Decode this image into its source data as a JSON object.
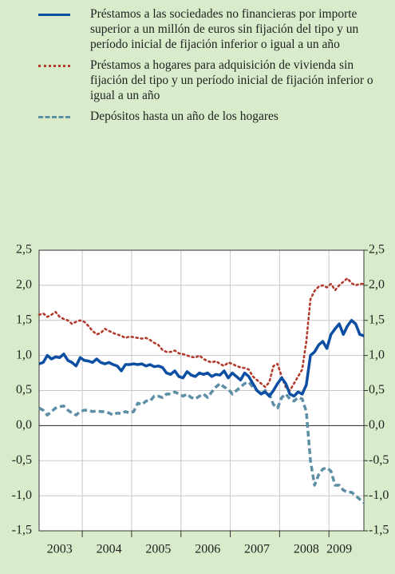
{
  "chart_data": {
    "type": "line",
    "categories": [
      null,
      null,
      null,
      null,
      null,
      "2003",
      null,
      null,
      null,
      null,
      null,
      null,
      null,
      null,
      null,
      null,
      null,
      "2004",
      null,
      null,
      null,
      null,
      null,
      null,
      null,
      null,
      null,
      null,
      null,
      "2005",
      null,
      null,
      null,
      null,
      null,
      null,
      null,
      null,
      null,
      null,
      null,
      "2006",
      null,
      null,
      null,
      null,
      null,
      null,
      null,
      null,
      null,
      null,
      null,
      "2007",
      null,
      null,
      null,
      null,
      null,
      null,
      null,
      null,
      null,
      null,
      null,
      "2008",
      null,
      null,
      null,
      null,
      null,
      null,
      null,
      "2009",
      null,
      null,
      null,
      null,
      null,
      null
    ],
    "series": [
      {
        "name": "Préstamos a las sociedades no financieras por importe superior a un millón de euros sin fijación del tipo y un período inicial de fijación inferior o igual a un año",
        "color": "#0b4ea2",
        "style": "solid",
        "values": [
          0.88,
          0.9,
          1.0,
          0.95,
          0.98,
          0.97,
          1.02,
          0.93,
          0.9,
          0.85,
          0.97,
          0.93,
          0.92,
          0.9,
          0.95,
          0.9,
          0.88,
          0.9,
          0.87,
          0.85,
          0.78,
          0.87,
          0.87,
          0.88,
          0.87,
          0.88,
          0.85,
          0.87,
          0.84,
          0.85,
          0.83,
          0.75,
          0.73,
          0.78,
          0.7,
          0.68,
          0.77,
          0.72,
          0.7,
          0.75,
          0.73,
          0.75,
          0.7,
          0.73,
          0.72,
          0.78,
          0.68,
          0.75,
          0.7,
          0.65,
          0.75,
          0.7,
          0.6,
          0.5,
          0.45,
          0.48,
          0.42,
          0.5,
          0.6,
          0.68,
          0.6,
          0.45,
          0.42,
          0.48,
          0.45,
          0.58,
          1.0,
          1.05,
          1.15,
          1.2,
          1.1,
          1.3,
          1.38,
          1.45,
          1.3,
          1.42,
          1.5,
          1.45,
          1.3,
          1.28
        ]
      },
      {
        "name": "Préstamos a hogares para adquisición de vivienda sin fijación del tipo y un período inicial de fijación inferior o igual a un año",
        "color": "#b23a2c",
        "style": "dotted",
        "values": [
          1.58,
          1.6,
          1.55,
          1.58,
          1.62,
          1.55,
          1.52,
          1.5,
          1.45,
          1.48,
          1.5,
          1.48,
          1.42,
          1.35,
          1.3,
          1.32,
          1.38,
          1.35,
          1.32,
          1.3,
          1.28,
          1.25,
          1.27,
          1.26,
          1.25,
          1.24,
          1.25,
          1.22,
          1.18,
          1.15,
          1.08,
          1.05,
          1.05,
          1.07,
          1.03,
          1.02,
          1.0,
          0.98,
          0.97,
          1.0,
          0.95,
          0.92,
          0.9,
          0.92,
          0.88,
          0.85,
          0.9,
          0.88,
          0.85,
          0.83,
          0.82,
          0.8,
          0.7,
          0.65,
          0.6,
          0.55,
          0.62,
          0.85,
          0.88,
          0.7,
          0.55,
          0.5,
          0.6,
          0.7,
          0.8,
          1.2,
          1.8,
          1.92,
          1.98,
          2.0,
          1.97,
          2.02,
          1.93,
          2.0,
          2.05,
          2.1,
          2.03,
          2.0,
          2.02,
          2.02
        ]
      },
      {
        "name": "Depósitos hasta un año de los hogares",
        "color": "#5c8fa6",
        "style": "dashed",
        "values": [
          0.25,
          0.22,
          0.15,
          0.2,
          0.25,
          0.27,
          0.28,
          0.22,
          0.18,
          0.15,
          0.2,
          0.22,
          0.22,
          0.2,
          0.21,
          0.2,
          0.2,
          0.18,
          0.15,
          0.18,
          0.17,
          0.2,
          0.18,
          0.2,
          0.32,
          0.3,
          0.35,
          0.35,
          0.42,
          0.42,
          0.4,
          0.45,
          0.45,
          0.48,
          0.45,
          0.42,
          0.45,
          0.4,
          0.38,
          0.42,
          0.45,
          0.4,
          0.48,
          0.55,
          0.6,
          0.55,
          0.52,
          0.45,
          0.5,
          0.55,
          0.6,
          0.62,
          0.55,
          0.5,
          0.45,
          0.5,
          0.45,
          0.3,
          0.25,
          0.4,
          0.45,
          0.38,
          0.35,
          0.4,
          0.38,
          0.2,
          -0.5,
          -0.85,
          -0.7,
          -0.62,
          -0.6,
          -0.65,
          -0.85,
          -0.85,
          -0.92,
          -0.95,
          -0.95,
          -1.0,
          -1.05,
          -1.1
        ]
      }
    ],
    "ylim": [
      -1.5,
      2.5
    ],
    "yticks": [
      {
        "value": -1.5,
        "label": "-1,5"
      },
      {
        "value": -1.0,
        "label": "-1,0"
      },
      {
        "value": -0.5,
        "label": "-0,5"
      },
      {
        "value": 0,
        "label": "0,0"
      },
      {
        "value": 0.5,
        "label": "0,5"
      },
      {
        "value": 1.0,
        "label": "1,0"
      },
      {
        "value": 1.5,
        "label": "1,5"
      },
      {
        "value": 2.0,
        "label": "2,0"
      },
      {
        "value": 2.5,
        "label": "2,5"
      }
    ],
    "y2lim": [
      -1.5,
      2.5
    ],
    "y2ticks": [
      {
        "value": -1.5,
        "label": "-1,5"
      },
      {
        "value": -1.0,
        "label": "-1,0"
      },
      {
        "value": -0.5,
        "label": "-0,5"
      },
      {
        "value": 0,
        "label": "0,0"
      },
      {
        "value": 0.5,
        "label": "0,5"
      },
      {
        "value": 1.0,
        "label": "1,0"
      },
      {
        "value": 1.5,
        "label": "1,5"
      },
      {
        "value": 2.0,
        "label": "2,0"
      },
      {
        "value": 2.5,
        "label": "2,5"
      }
    ],
    "grid": true,
    "legend": "top"
  }
}
